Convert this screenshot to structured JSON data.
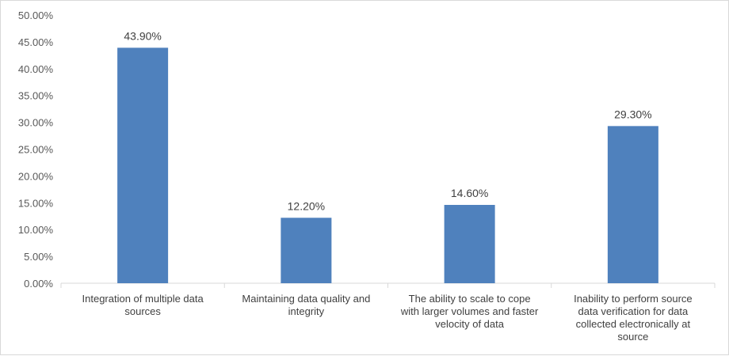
{
  "chart_data": {
    "type": "bar",
    "categories": [
      [
        "Integration of multiple data",
        "sources"
      ],
      [
        "Maintaining data quality and",
        "integrity"
      ],
      [
        "The ability to scale to cope",
        "with larger volumes and faster",
        "velocity of data"
      ],
      [
        "Inability to perform source",
        "data verification for data",
        "collected electronically at",
        "source"
      ]
    ],
    "values": [
      43.9,
      12.2,
      14.6,
      29.3
    ],
    "data_labels": [
      "43.90%",
      "12.20%",
      "14.60%",
      "29.30%"
    ],
    "yticks": [
      "0.00%",
      "5.00%",
      "10.00%",
      "15.00%",
      "20.00%",
      "25.00%",
      "30.00%",
      "35.00%",
      "40.00%",
      "45.00%",
      "50.00%"
    ],
    "ylim": [
      0,
      50
    ],
    "title": "",
    "xlabel": "",
    "ylabel": "",
    "grid": false,
    "bar_color": "#4f81bd",
    "axis_color": "#d9d9d9"
  }
}
